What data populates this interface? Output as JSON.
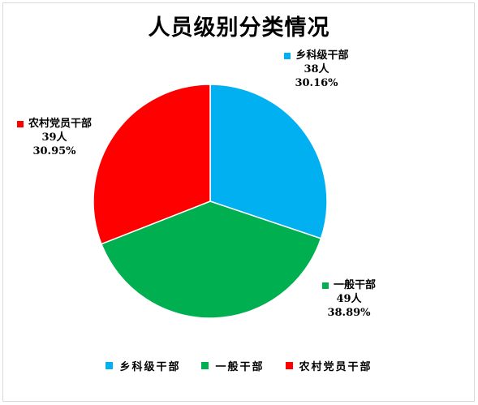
{
  "chart_data": {
    "type": "pie",
    "title": "人员级别分类情况",
    "series": [
      {
        "name": "乡科级干部",
        "value": 38,
        "value_label": "38人",
        "percent_label": "30.16%",
        "color": "#00b0f0"
      },
      {
        "name": "一般干部",
        "value": 49,
        "value_label": "49人",
        "percent_label": "38.89%",
        "color": "#00b050"
      },
      {
        "name": "农村党员干部",
        "value": 39,
        "value_label": "39人",
        "percent_label": "30.95%",
        "color": "#ff0000"
      }
    ],
    "legend_position": "bottom"
  }
}
